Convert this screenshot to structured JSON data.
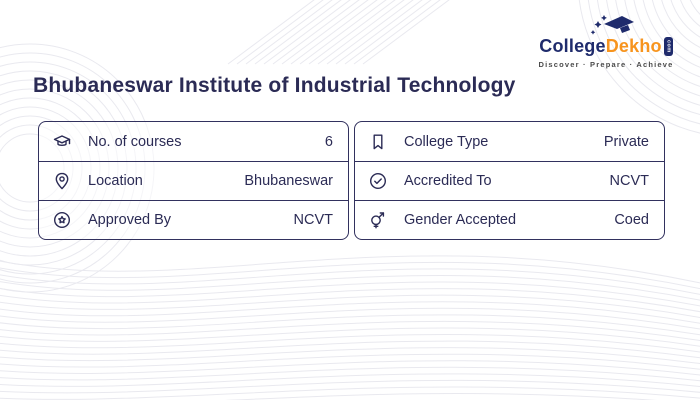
{
  "header": {
    "title": "Bhubaneswar Institute of Industrial Technology"
  },
  "logo": {
    "brand_college": "College",
    "brand_dekho": "Dekho",
    "brand_domain": "com",
    "tagline": "Discover · Prepare · Achieve",
    "navy": "#1f2b6c",
    "orange": "#f7941e"
  },
  "info_table": {
    "border_color": "#32315e",
    "left_rows": [
      {
        "icon": "graduation-cap-icon",
        "label": "No. of courses",
        "value": "6"
      },
      {
        "icon": "location-pin-icon",
        "label": "Location",
        "value": "Bhubaneswar"
      },
      {
        "icon": "approval-badge-icon",
        "label": "Approved By",
        "value": "NCVT"
      }
    ],
    "right_rows": [
      {
        "icon": "bookmark-icon",
        "label": "College Type",
        "value": "Private"
      },
      {
        "icon": "check-circle-icon",
        "label": "Accredited To",
        "value": "NCVT"
      },
      {
        "icon": "gender-icon",
        "label": "Gender Accepted",
        "value": "Coed"
      }
    ]
  }
}
